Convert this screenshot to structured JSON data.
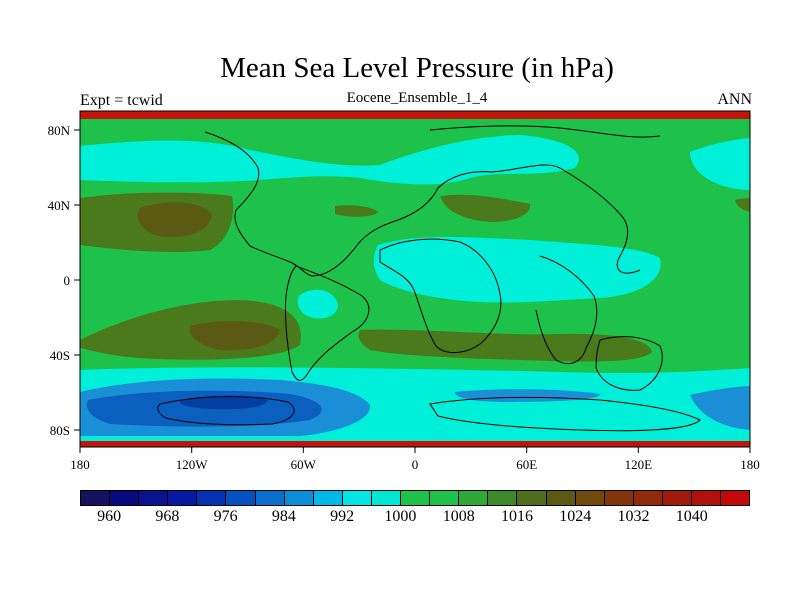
{
  "title": "Mean Sea Level Pressure (in hPa)",
  "left_label": "Expt = tcwid",
  "center_label": "Eocene_Ensemble_1_4",
  "right_label": "ANN",
  "map": {
    "lon_ticks": [
      "180",
      "120W",
      "60W",
      "0",
      "60E",
      "120E",
      "180"
    ],
    "lat_ticks": [
      "80N",
      "40N",
      "0",
      "40S",
      "80S"
    ],
    "colors": {
      "green": "#1ec24a",
      "cyan": "#00efd9",
      "olive": "#4a7a1c",
      "brown": "#5b5a14",
      "blue_light": "#1b8fd6",
      "blue_mid": "#0a5fbf",
      "blue_dark": "#033fa2",
      "red": "#c0140c"
    }
  },
  "colorbar": {
    "labels": [
      "960",
      "968",
      "976",
      "984",
      "992",
      "1000",
      "1008",
      "1016",
      "1024",
      "1032",
      "1040"
    ],
    "colors": [
      "#16125e",
      "#0a0a7f",
      "#0a128f",
      "#051aa0",
      "#0532b0",
      "#0650bf",
      "#0a6fcd",
      "#0a8ed8",
      "#00b8e5",
      "#00e6e6",
      "#00e6d4",
      "#1ec24a",
      "#1ec24a",
      "#2fa838",
      "#3e8a2a",
      "#4e6e1e",
      "#5a5a14",
      "#6e4a0e",
      "#83340a",
      "#912a0a",
      "#a01c0a",
      "#b0120a",
      "#c00a0a"
    ]
  }
}
